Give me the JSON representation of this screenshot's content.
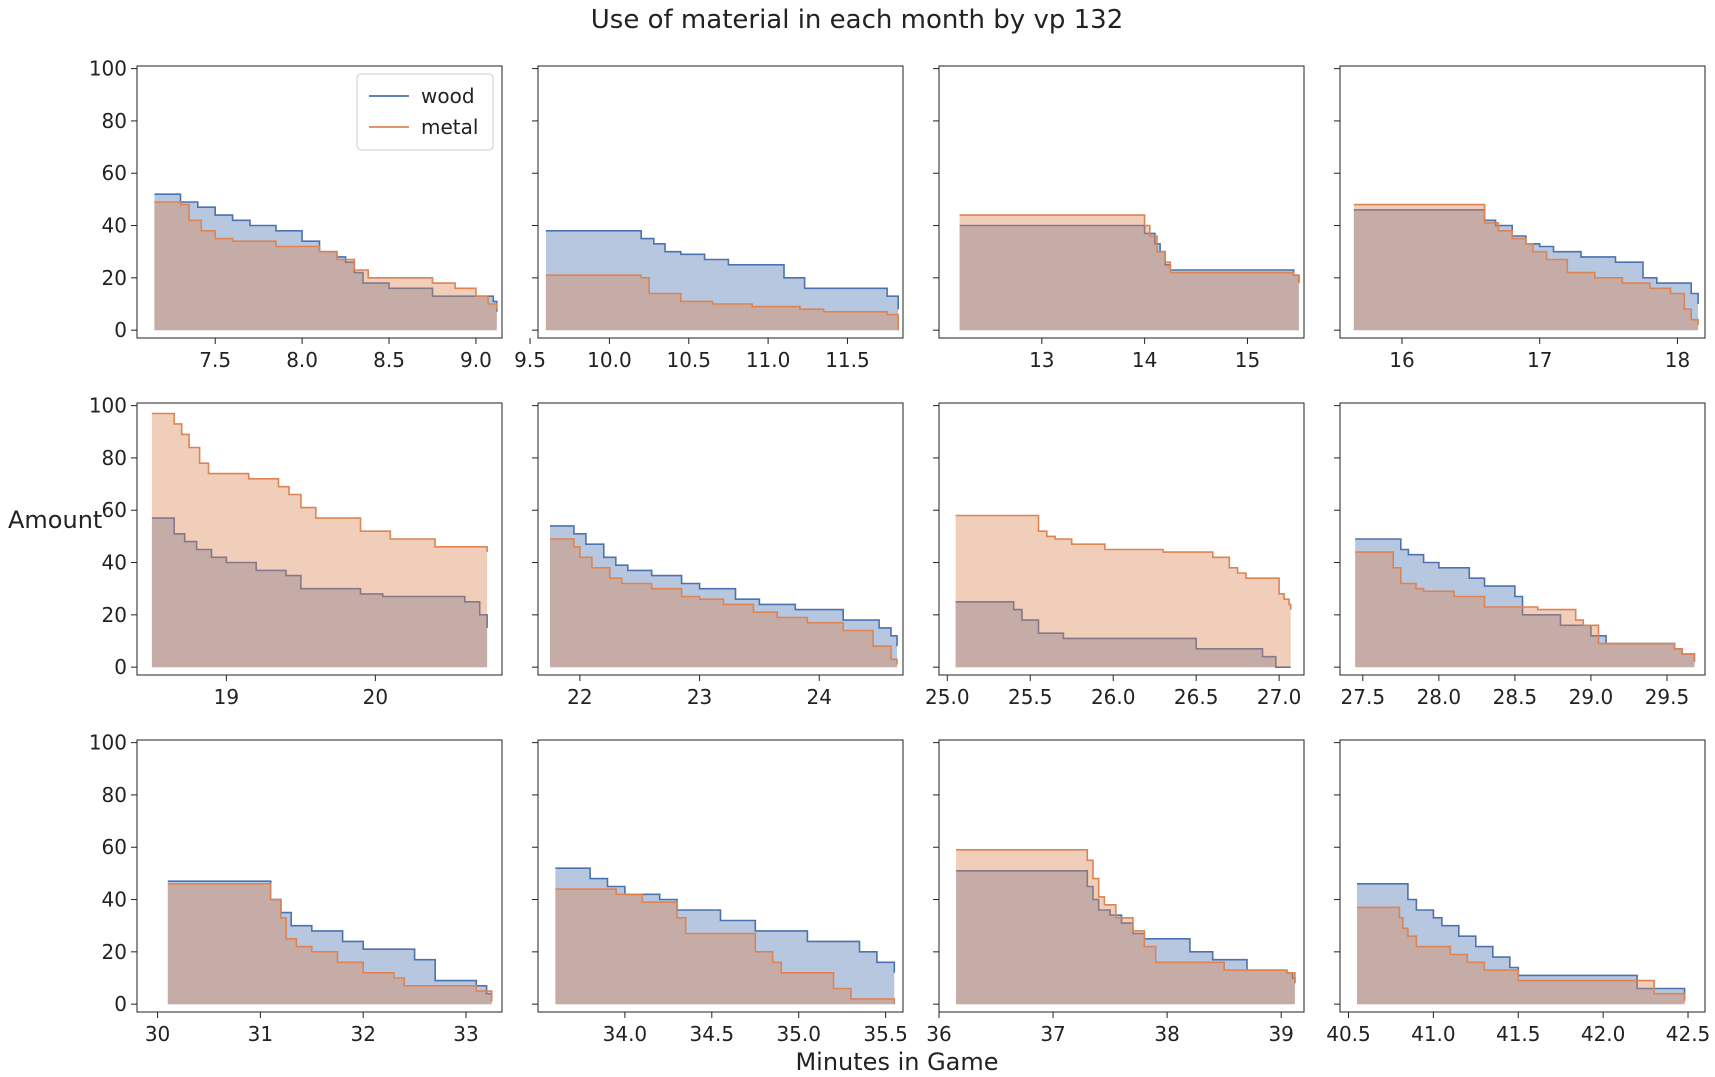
{
  "figure": {
    "title": "Use of material in each month by vp 132",
    "xlabel": "Minutes in Game",
    "ylabel": "Amount"
  },
  "colors": {
    "wood": "#4c72b0",
    "metal": "#dd8452"
  },
  "chart_data": {
    "type": "area",
    "subtype": "step-fill-small-multiples",
    "grid": false,
    "legend": {
      "position": "top-right",
      "panel": 0,
      "entries": [
        "wood",
        "metal"
      ]
    },
    "ylim": [
      -3,
      101
    ],
    "yticks": [
      0,
      20,
      40,
      60,
      80,
      100
    ],
    "panels": [
      {
        "xlim": [
          7.05,
          9.15
        ],
        "xticks": [
          7.5,
          8.0,
          8.5,
          9.0
        ],
        "xtick_labels": [
          "7.5",
          "8.0",
          "8.5",
          "9.0"
        ],
        "series": [
          {
            "name": "wood",
            "x": [
              7.15,
              7.3,
              7.4,
              7.5,
              7.6,
              7.7,
              7.85,
              8.0,
              8.1,
              8.2,
              8.25,
              8.3,
              8.35,
              8.5,
              8.75,
              9.1,
              9.12
            ],
            "y": [
              52,
              49,
              47,
              44,
              42,
              40,
              38,
              34,
              30,
              28,
              26,
              22,
              18,
              16,
              13,
              11,
              7
            ]
          },
          {
            "name": "metal",
            "x": [
              7.15,
              7.3,
              7.35,
              7.42,
              7.5,
              7.6,
              7.85,
              8.1,
              8.2,
              8.3,
              8.38,
              8.75,
              8.88,
              9.0,
              9.07,
              9.12
            ],
            "y": [
              49,
              48,
              42,
              38,
              35,
              34,
              32,
              30,
              27,
              23,
              20,
              18,
              16,
              13,
              10,
              8
            ]
          }
        ]
      },
      {
        "xlim": [
          9.55,
          11.85
        ],
        "xticks": [
          9.5,
          10.0,
          10.5,
          11.0,
          11.5
        ],
        "xtick_labels": [
          "9.5",
          "10.0",
          "10.5",
          "11.0",
          "11.5"
        ],
        "series": [
          {
            "name": "wood",
            "x": [
              9.6,
              10.2,
              10.28,
              10.35,
              10.45,
              10.6,
              10.75,
              11.1,
              11.23,
              11.75,
              11.82
            ],
            "y": [
              38,
              35,
              33,
              30,
              29,
              27,
              25,
              20,
              16,
              13,
              8
            ]
          },
          {
            "name": "metal",
            "x": [
              9.6,
              10.2,
              10.25,
              10.45,
              10.65,
              10.9,
              11.2,
              11.35,
              11.75,
              11.82
            ],
            "y": [
              21,
              20,
              14,
              11,
              10,
              9,
              8,
              7,
              6,
              0
            ]
          }
        ]
      },
      {
        "xlim": [
          12.0,
          15.55
        ],
        "xticks": [
          13,
          14,
          15
        ],
        "xtick_labels": [
          "13",
          "14",
          "15"
        ],
        "series": [
          {
            "name": "wood",
            "x": [
              12.2,
              14.0,
              14.1,
              14.15,
              14.2,
              14.25,
              15.45,
              15.5
            ],
            "y": [
              40,
              37,
              33,
              30,
              25,
              23,
              21,
              18
            ]
          },
          {
            "name": "metal",
            "x": [
              12.2,
              14.0,
              14.05,
              14.12,
              14.2,
              14.25,
              15.45,
              15.5
            ],
            "y": [
              44,
              40,
              36,
              30,
              26,
              22,
              21,
              18
            ]
          }
        ]
      },
      {
        "xlim": [
          15.55,
          18.2
        ],
        "xticks": [
          16,
          17,
          18
        ],
        "xtick_labels": [
          "16",
          "17",
          "18"
        ],
        "series": [
          {
            "name": "wood",
            "x": [
              15.65,
              16.6,
              16.68,
              16.8,
              16.9,
              17.0,
              17.1,
              17.3,
              17.55,
              17.75,
              17.85,
              18.1,
              18.15
            ],
            "y": [
              46,
              42,
              40,
              36,
              33,
              32,
              30,
              28,
              26,
              20,
              18,
              14,
              10
            ]
          },
          {
            "name": "metal",
            "x": [
              15.65,
              16.6,
              16.7,
              16.8,
              16.9,
              16.95,
              17.05,
              17.2,
              17.4,
              17.6,
              17.8,
              17.95,
              18.05,
              18.1,
              18.15
            ],
            "y": [
              48,
              41,
              38,
              35,
              33,
              30,
              27,
              22,
              20,
              18,
              16,
              14,
              8,
              4,
              2
            ]
          }
        ]
      },
      {
        "xlim": [
          18.4,
          20.85
        ],
        "xticks": [
          19,
          20
        ],
        "xtick_labels": [
          "19",
          "20"
        ],
        "series": [
          {
            "name": "wood",
            "x": [
              18.5,
              18.65,
              18.72,
              18.8,
              18.9,
              19.0,
              19.2,
              19.4,
              19.5,
              19.9,
              20.05,
              20.6,
              20.7,
              20.75
            ],
            "y": [
              57,
              51,
              48,
              45,
              42,
              40,
              37,
              35,
              30,
              28,
              27,
              25,
              20,
              15
            ]
          },
          {
            "name": "metal",
            "x": [
              18.5,
              18.65,
              18.7,
              18.75,
              18.82,
              18.88,
              19.0,
              19.15,
              19.35,
              19.42,
              19.5,
              19.6,
              19.9,
              20.1,
              20.4,
              20.75
            ],
            "y": [
              97,
              93,
              89,
              84,
              78,
              74,
              74,
              72,
              69,
              66,
              61,
              57,
              52,
              49,
              46,
              44
            ]
          }
        ]
      },
      {
        "xlim": [
          21.65,
          24.7
        ],
        "xticks": [
          22,
          23,
          24
        ],
        "xtick_labels": [
          "22",
          "23",
          "24"
        ],
        "series": [
          {
            "name": "wood",
            "x": [
              21.75,
              21.95,
              22.05,
              22.2,
              22.3,
              22.4,
              22.6,
              22.85,
              23.0,
              23.3,
              23.5,
              23.8,
              24.2,
              24.5,
              24.6,
              24.65
            ],
            "y": [
              54,
              51,
              47,
              42,
              39,
              37,
              35,
              32,
              30,
              26,
              24,
              22,
              18,
              15,
              12,
              8
            ]
          },
          {
            "name": "metal",
            "x": [
              21.75,
              21.95,
              22.0,
              22.1,
              22.25,
              22.35,
              22.6,
              22.85,
              23.0,
              23.2,
              23.45,
              23.65,
              23.9,
              24.2,
              24.45,
              24.6,
              24.65
            ],
            "y": [
              49,
              46,
              42,
              38,
              34,
              32,
              30,
              27,
              26,
              24,
              21,
              19,
              17,
              14,
              8,
              3,
              1
            ]
          }
        ]
      },
      {
        "xlim": [
          24.95,
          27.15
        ],
        "xticks": [
          25.0,
          25.5,
          26.0,
          26.5,
          27.0
        ],
        "xtick_labels": [
          "25.0",
          "25.5",
          "26.0",
          "26.5",
          "27.0"
        ],
        "series": [
          {
            "name": "wood",
            "x": [
              25.05,
              25.4,
              25.45,
              25.55,
              25.7,
              26.5,
              26.9,
              26.98,
              27.07
            ],
            "y": [
              25,
              22,
              18,
              13,
              11,
              7,
              4,
              0,
              0
            ]
          },
          {
            "name": "metal",
            "x": [
              25.05,
              25.55,
              25.6,
              25.65,
              25.75,
              25.95,
              26.3,
              26.6,
              26.7,
              26.75,
              26.8,
              27.0,
              27.03,
              27.06,
              27.07
            ],
            "y": [
              58,
              52,
              50,
              49,
              47,
              45,
              44,
              42,
              38,
              36,
              34,
              28,
              26,
              24,
              22
            ]
          }
        ]
      },
      {
        "xlim": [
          27.35,
          29.75
        ],
        "xticks": [
          27.5,
          28.0,
          28.5,
          29.0,
          29.5
        ],
        "xtick_labels": [
          "27.5",
          "28.0",
          "28.5",
          "29.0",
          "29.5"
        ],
        "series": [
          {
            "name": "wood",
            "x": [
              27.45,
              27.75,
              27.8,
              27.9,
              28.0,
              28.2,
              28.3,
              28.5,
              28.55,
              28.8,
              29.0,
              29.1,
              29.55,
              29.6,
              29.68
            ],
            "y": [
              49,
              45,
              43,
              40,
              38,
              34,
              31,
              27,
              20,
              16,
              12,
              9,
              7,
              5,
              2
            ]
          },
          {
            "name": "metal",
            "x": [
              27.45,
              27.7,
              27.75,
              27.85,
              27.9,
              28.1,
              28.3,
              28.65,
              28.9,
              28.95,
              29.05,
              29.55,
              29.6,
              29.68
            ],
            "y": [
              44,
              38,
              32,
              30,
              29,
              27,
              23,
              22,
              18,
              16,
              9,
              7,
              5,
              2
            ]
          }
        ]
      },
      {
        "xlim": [
          29.8,
          33.35
        ],
        "xticks": [
          30,
          31,
          32,
          33
        ],
        "xtick_labels": [
          "30",
          "31",
          "32",
          "33"
        ],
        "series": [
          {
            "name": "wood",
            "x": [
              30.1,
              31.1,
              31.2,
              31.3,
              31.5,
              31.8,
              32.0,
              32.5,
              32.7,
              33.1,
              33.2,
              33.25
            ],
            "y": [
              47,
              40,
              35,
              30,
              28,
              24,
              21,
              17,
              9,
              7,
              4,
              1
            ]
          },
          {
            "name": "metal",
            "x": [
              30.1,
              31.1,
              31.2,
              31.25,
              31.35,
              31.5,
              31.75,
              32.0,
              32.3,
              32.4,
              33.1,
              33.25
            ],
            "y": [
              46,
              40,
              33,
              25,
              22,
              20,
              16,
              12,
              10,
              7,
              5,
              1
            ]
          }
        ]
      },
      {
        "xlim": [
          33.5,
          35.6
        ],
        "xticks": [
          34.0,
          34.5,
          35.0,
          35.5
        ],
        "xtick_labels": [
          "34.0",
          "34.5",
          "35.0",
          "35.5"
        ],
        "series": [
          {
            "name": "wood",
            "x": [
              33.6,
              33.8,
              33.9,
              34.0,
              34.2,
              34.3,
              34.55,
              34.75,
              35.05,
              35.2,
              35.35,
              35.45,
              35.55
            ],
            "y": [
              52,
              48,
              45,
              42,
              40,
              36,
              32,
              28,
              24,
              24,
              20,
              16,
              12
            ]
          },
          {
            "name": "metal",
            "x": [
              33.6,
              33.95,
              34.1,
              34.3,
              34.35,
              34.75,
              34.85,
              34.9,
              35.2,
              35.3,
              35.55
            ],
            "y": [
              44,
              42,
              39,
              33,
              27,
              20,
              16,
              12,
              6,
              2,
              0
            ]
          }
        ]
      },
      {
        "xlim": [
          36.0,
          39.2
        ],
        "xticks": [
          36,
          37,
          38,
          39
        ],
        "xtick_labels": [
          "36",
          "37",
          "38",
          "39"
        ],
        "series": [
          {
            "name": "wood",
            "x": [
              36.15,
              37.3,
              37.35,
              37.4,
              37.5,
              37.6,
              37.7,
              37.8,
              38.2,
              38.4,
              38.7,
              39.05,
              39.1,
              39.12
            ],
            "y": [
              51,
              45,
              40,
              36,
              34,
              31,
              27,
              25,
              20,
              17,
              13,
              12,
              10,
              8
            ]
          },
          {
            "name": "metal",
            "x": [
              36.15,
              37.3,
              37.35,
              37.4,
              37.45,
              37.55,
              37.7,
              37.8,
              37.9,
              38.5,
              38.7,
              39.05,
              39.12
            ],
            "y": [
              59,
              55,
              48,
              41,
              38,
              33,
              28,
              22,
              16,
              13,
              13,
              12,
              8
            ]
          }
        ]
      },
      {
        "xlim": [
          40.45,
          42.6
        ],
        "xticks": [
          40.5,
          41.0,
          41.5,
          42.0,
          42.5
        ],
        "xtick_labels": [
          "40.5",
          "41.0",
          "41.5",
          "42.0",
          "42.5"
        ],
        "series": [
          {
            "name": "wood",
            "x": [
              40.55,
              40.85,
              40.9,
              41.0,
              41.05,
              41.15,
              41.25,
              41.35,
              41.45,
              41.5,
              42.15,
              42.2,
              42.4,
              42.48
            ],
            "y": [
              46,
              40,
              36,
              33,
              30,
              26,
              22,
              18,
              14,
              11,
              11,
              6,
              6,
              2
            ]
          },
          {
            "name": "metal",
            "x": [
              40.55,
              40.8,
              40.82,
              40.85,
              40.9,
              41.1,
              41.2,
              41.3,
              41.5,
              42.15,
              42.3,
              42.48
            ],
            "y": [
              37,
              33,
              29,
              26,
              22,
              19,
              16,
              13,
              9,
              9,
              4,
              1
            ]
          }
        ]
      }
    ]
  }
}
